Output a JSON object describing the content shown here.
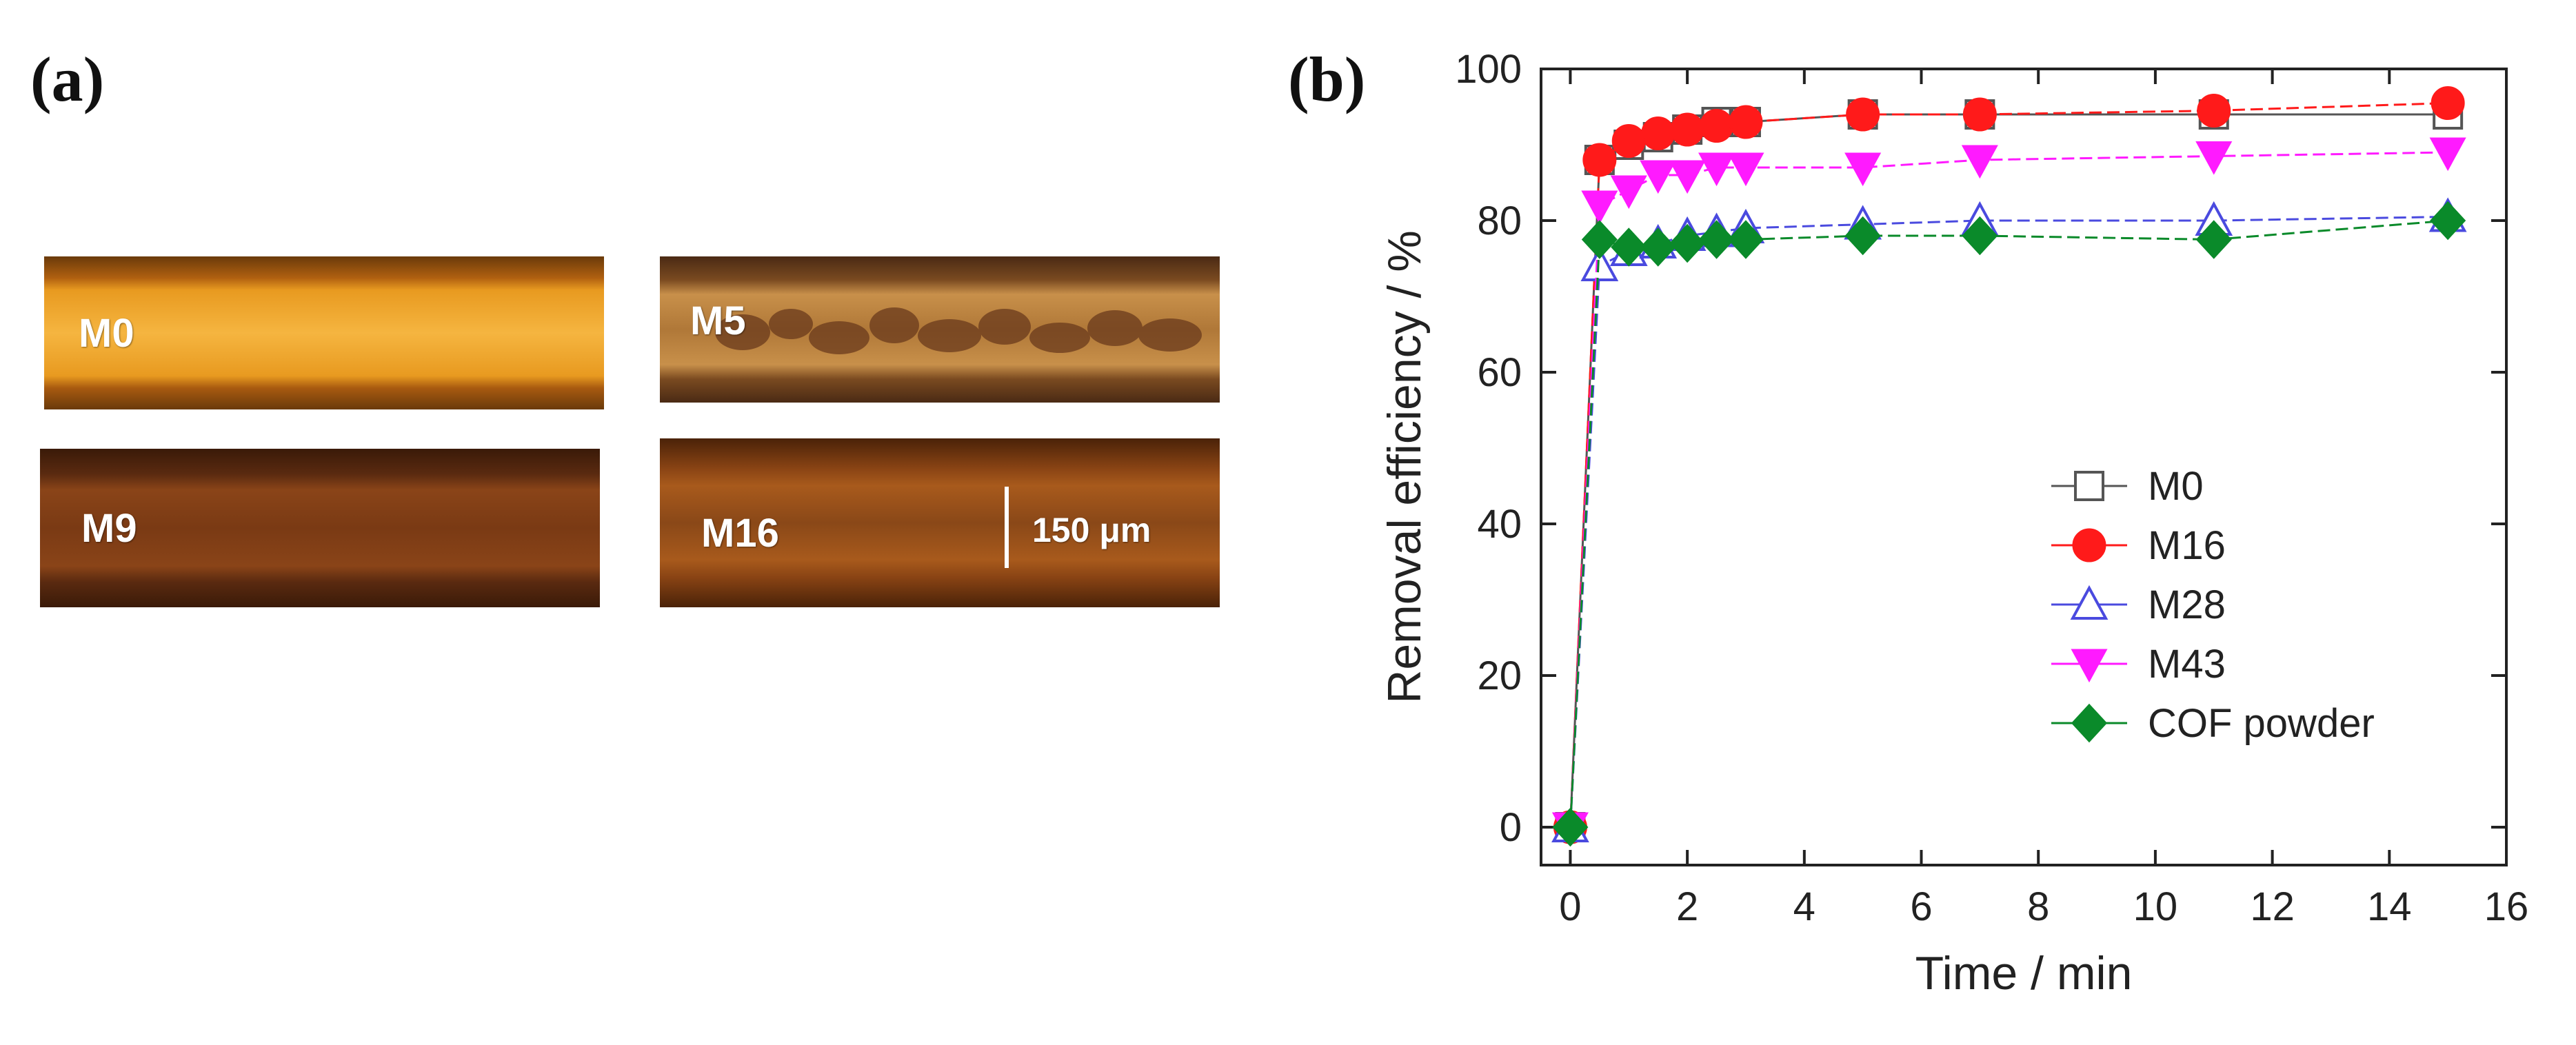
{
  "panels": {
    "a_label": "(a)",
    "b_label": "(b)"
  },
  "micrographs": [
    {
      "label": "M0"
    },
    {
      "label": "M5"
    },
    {
      "label": "M9"
    },
    {
      "label": "M16"
    }
  ],
  "scale_bar": {
    "label": "150 μm"
  },
  "colors": {
    "M0": "#555555",
    "M16": "#ff1a1a",
    "M28": "#4a4adf",
    "M43": "#ff1aff",
    "COF powder": "#0a8a2a"
  },
  "chart_data": {
    "type": "line",
    "title": "",
    "xlabel": "Time / min",
    "ylabel": "Removal efficiency / %",
    "xlim": [
      -0.5,
      16
    ],
    "ylim": [
      -5,
      100
    ],
    "xticks": [
      0,
      2,
      4,
      6,
      8,
      10,
      12,
      14,
      16
    ],
    "yticks": [
      0,
      20,
      40,
      60,
      80,
      100
    ],
    "legend_position": "right-middle",
    "x": [
      0,
      0.5,
      1,
      1.5,
      2,
      2.5,
      3,
      5,
      7,
      11,
      15
    ],
    "series": [
      {
        "name": "M0",
        "marker": "square-open",
        "values": [
          0,
          88,
          90,
          91,
          92,
          93,
          93,
          94,
          94,
          94,
          94
        ]
      },
      {
        "name": "M16",
        "marker": "circle",
        "values": [
          0,
          88,
          90.5,
          91.5,
          92,
          92.5,
          93,
          94,
          94,
          94.5,
          95.5
        ]
      },
      {
        "name": "M28",
        "marker": "triangle-up-open",
        "values": [
          0,
          74,
          76,
          77,
          78,
          78.5,
          79,
          79.5,
          80,
          80,
          80.5
        ]
      },
      {
        "name": "M43",
        "marker": "triangle-down",
        "values": [
          0,
          82,
          84,
          86,
          86,
          87,
          87,
          87,
          88,
          88.5,
          89
        ]
      },
      {
        "name": "COF powder",
        "marker": "diamond",
        "values": [
          0,
          77.5,
          76.5,
          76.5,
          77,
          77.5,
          77.5,
          78,
          78,
          77.5,
          80
        ]
      }
    ]
  }
}
